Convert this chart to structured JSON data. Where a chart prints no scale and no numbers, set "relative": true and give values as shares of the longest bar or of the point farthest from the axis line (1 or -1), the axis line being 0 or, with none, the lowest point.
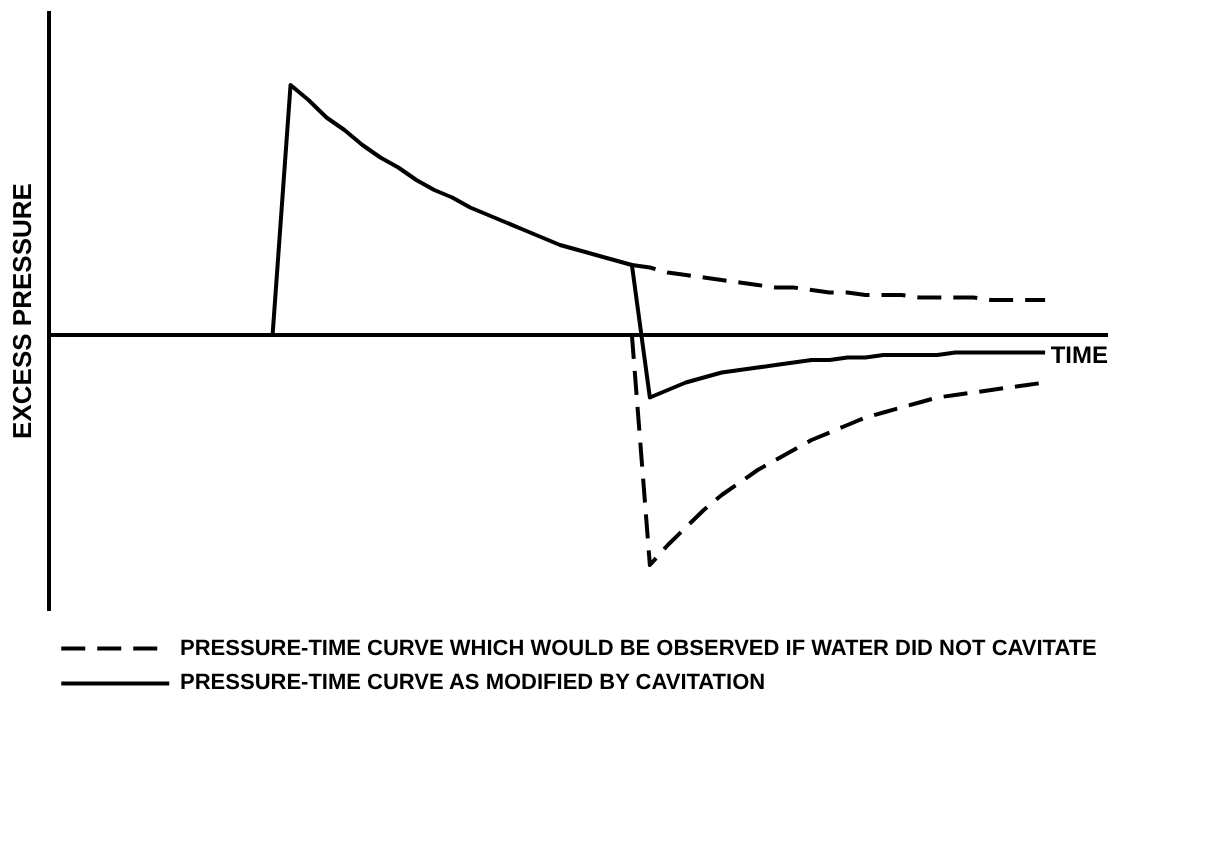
{
  "chart_data": {
    "type": "line",
    "relative": true,
    "ylabel": "EXCESS  PRESSURE",
    "xlabel": "TIME",
    "categories": [
      null,
      null,
      null,
      null,
      null,
      null,
      null,
      null,
      null,
      null,
      null,
      null,
      null,
      null,
      null,
      null,
      null,
      null,
      null,
      null,
      null,
      null,
      null,
      null,
      null,
      null,
      null,
      null,
      null,
      null,
      null,
      null,
      null,
      null,
      null,
      null,
      null,
      null,
      null,
      null,
      null,
      null,
      null,
      null,
      null,
      null,
      null,
      null,
      null,
      null,
      null,
      null,
      null,
      null,
      null,
      null,
      null,
      null,
      null
    ],
    "ylim": [
      -1.1,
      1.3
    ],
    "tick_labels": false,
    "grid": false,
    "legend": "bottom",
    "marker": "none",
    "series": [
      {
        "name": "PRESSURE-TIME CURVE WHICH WOULD BE OBSERVED IF WATER DID NOT CAVITATE",
        "color": "#000000",
        "line_style": "dashed",
        "values": [
          null,
          null,
          null,
          null,
          null,
          null,
          null,
          null,
          null,
          null,
          null,
          null,
          null,
          null,
          null,
          null,
          null,
          null,
          null,
          null,
          null,
          null,
          null,
          null,
          null,
          null,
          null,
          null,
          null,
          null,
          null,
          null,
          0.28,
          0.27,
          0.25,
          0.24,
          0.23,
          0.22,
          0.21,
          0.2,
          0.19,
          0.19,
          0.18,
          0.17,
          0.17,
          0.16,
          0.16,
          0.16,
          0.15,
          0.15,
          0.15,
          0.15,
          0.14,
          0.14,
          0.14,
          0.14,
          null,
          null,
          null
        ]
      },
      {
        "color": "#000000",
        "line_style": "dashed",
        "values": [
          null,
          null,
          null,
          null,
          null,
          null,
          null,
          null,
          null,
          null,
          null,
          null,
          null,
          null,
          null,
          null,
          null,
          null,
          null,
          null,
          null,
          null,
          null,
          null,
          null,
          null,
          null,
          null,
          null,
          null,
          null,
          null,
          0,
          -0.92,
          -0.84,
          -0.77,
          -0.7,
          -0.64,
          -0.59,
          -0.54,
          -0.5,
          -0.46,
          -0.42,
          -0.39,
          -0.36,
          -0.33,
          -0.31,
          -0.29,
          -0.27,
          -0.25,
          -0.24,
          -0.23,
          -0.22,
          -0.21,
          -0.2,
          -0.19,
          null,
          null,
          null
        ]
      },
      {
        "name": "PRESSURE-TIME CURVE AS MODIFIED BY CAVITATION",
        "color": "#000000",
        "line_style": "solid",
        "values": [
          null,
          null,
          null,
          null,
          null,
          null,
          null,
          null,
          null,
          null,
          null,
          null,
          0,
          1,
          0.94,
          0.87,
          0.82,
          0.76,
          0.71,
          0.67,
          0.62,
          0.58,
          0.55,
          0.51,
          0.48,
          0.45,
          0.42,
          0.39,
          0.36,
          0.34,
          0.32,
          0.3,
          0.28,
          -0.25,
          -0.22,
          -0.19,
          -0.17,
          -0.15,
          -0.14,
          -0.13,
          -0.12,
          -0.11,
          -0.1,
          -0.1,
          -0.09,
          -0.09,
          -0.08,
          -0.08,
          -0.08,
          -0.08,
          -0.07,
          -0.07,
          -0.07,
          -0.07,
          -0.07,
          -0.07,
          null,
          null,
          null
        ]
      }
    ]
  }
}
